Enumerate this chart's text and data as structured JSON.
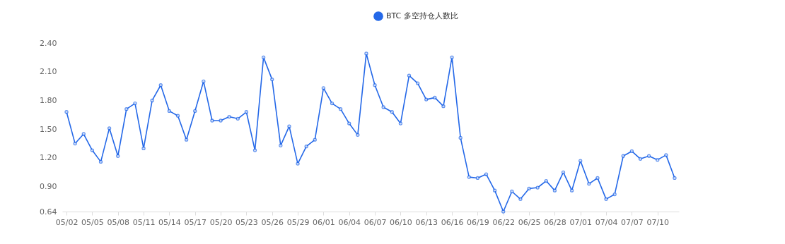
{
  "chart_data": {
    "type": "line",
    "categories": [
      "05/02",
      null,
      null,
      "05/05",
      null,
      null,
      "05/08",
      null,
      null,
      "05/11",
      null,
      null,
      "05/14",
      null,
      null,
      "05/17",
      null,
      null,
      "05/20",
      null,
      null,
      "05/23",
      null,
      null,
      "05/26",
      null,
      null,
      "05/29",
      null,
      null,
      "06/01",
      null,
      null,
      "06/04",
      null,
      null,
      "06/07",
      null,
      null,
      "06/10",
      null,
      null,
      "06/13",
      null,
      null,
      "06/16",
      null,
      null,
      "06/19",
      null,
      null,
      "06/22",
      null,
      null,
      "06/25",
      null,
      null,
      "06/28",
      null,
      null,
      "07/01",
      null,
      null,
      "07/04",
      null,
      null,
      "07/07",
      null,
      null,
      "07/10",
      null,
      null
    ],
    "series": [
      {
        "name": "BTC 多空持仓人数比",
        "color": "#2468e8",
        "values": [
          1.68,
          1.35,
          1.45,
          1.28,
          1.16,
          1.51,
          1.22,
          1.71,
          1.77,
          1.3,
          1.8,
          1.96,
          1.69,
          1.64,
          1.39,
          1.69,
          2.0,
          1.59,
          1.59,
          1.63,
          1.61,
          1.68,
          1.28,
          2.25,
          2.02,
          1.33,
          1.53,
          1.14,
          1.32,
          1.39,
          1.93,
          1.77,
          1.71,
          1.56,
          1.44,
          2.29,
          1.96,
          1.73,
          1.68,
          1.56,
          2.06,
          1.98,
          1.81,
          1.83,
          1.74,
          2.25,
          1.41,
          1.0,
          0.99,
          1.03,
          0.86,
          0.64,
          0.85,
          0.77,
          0.88,
          0.89,
          0.96,
          0.86,
          1.05,
          0.86,
          1.17,
          0.93,
          0.99,
          0.77,
          0.82,
          1.22,
          1.27,
          1.19,
          1.22,
          1.18,
          1.23,
          0.99
        ]
      }
    ],
    "ylim": [
      0.64,
      2.4
    ],
    "yticks": [
      0.64,
      {
        "value": 0.9,
        "label": "0.90"
      },
      {
        "value": 1.2,
        "label": "1.20"
      },
      {
        "value": 1.5,
        "label": "1.50"
      },
      {
        "value": 1.8,
        "label": "1.80"
      },
      {
        "value": 2.1,
        "label": "2.10"
      },
      {
        "value": 2.4,
        "label": "2.40"
      }
    ],
    "grid": false,
    "legend": "top",
    "marker": "circle",
    "line_style": "solid"
  }
}
